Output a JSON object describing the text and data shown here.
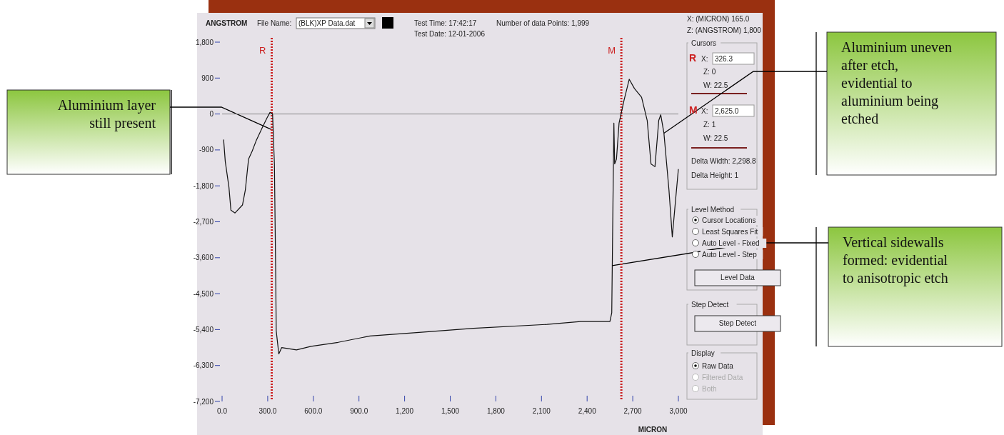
{
  "chart_data": {
    "type": "line",
    "xlabel": "MICRON",
    "ylabel": "ANGSTROM",
    "xlim": [
      0,
      3000
    ],
    "ylim": [
      -7200,
      1800
    ],
    "xticks": [
      {
        "value": 0,
        "label": "0.0"
      },
      {
        "value": 300,
        "label": "300.0"
      },
      {
        "value": 600,
        "label": "600.0"
      },
      {
        "value": 900,
        "label": "900.0"
      },
      {
        "value": 1200,
        "label": "1,200"
      },
      {
        "value": 1500,
        "label": "1,500"
      },
      {
        "value": 1800,
        "label": "1,800"
      },
      {
        "value": 2100,
        "label": "2,100"
      },
      {
        "value": 2400,
        "label": "2,400"
      },
      {
        "value": 2700,
        "label": "2,700"
      },
      {
        "value": 3000,
        "label": "3,000"
      }
    ],
    "yticks": [
      {
        "value": 1800,
        "label": "1,800"
      },
      {
        "value": 900,
        "label": "900"
      },
      0,
      {
        "value": -900,
        "label": "-900"
      },
      {
        "value": -1800,
        "label": "-1,800"
      },
      {
        "value": -2700,
        "label": "-2,700"
      },
      {
        "value": -3600,
        "label": "-3,600"
      },
      {
        "value": -4500,
        "label": "-4,500"
      },
      {
        "value": -5400,
        "label": "-5,400"
      },
      {
        "value": -6300,
        "label": "-6,300"
      },
      {
        "value": -7200,
        "label": "-7,200"
      }
    ],
    "series": [
      {
        "color": "#111111",
        "x": [
          10,
          21,
          45,
          58,
          85,
          134,
          153,
          174,
          198,
          223,
          263,
          295,
          315,
          332,
          344,
          352,
          356,
          373,
          392,
          489,
          585,
          763,
          973,
          1295,
          1653,
          2137,
          2357,
          2550,
          2562,
          2569,
          2576,
          2581,
          2593,
          2610,
          2643,
          2677,
          2711,
          2758,
          2795,
          2820,
          2846,
          2871,
          2884,
          2905,
          2938,
          2960,
          2980,
          3000
        ],
        "values": [
          -640,
          -1190,
          -1830,
          -2410,
          -2480,
          -2280,
          -1900,
          -1130,
          -930,
          -680,
          -350,
          -100,
          40,
          0,
          -1250,
          -3820,
          -5430,
          -6010,
          -5850,
          -5910,
          -5820,
          -5720,
          -5560,
          -5470,
          -5370,
          -5270,
          -5200,
          -5200,
          -4980,
          -2540,
          -230,
          -1250,
          -1130,
          -230,
          350,
          870,
          640,
          420,
          -160,
          -1250,
          -1320,
          -160,
          -20,
          -480,
          -1900,
          -3080,
          -2220,
          -1380
        ]
      }
    ],
    "ref_lines": [
      {
        "axis": "y",
        "value": 0,
        "color": "#888888"
      },
      {
        "axis": "x",
        "value": 326.3,
        "label": "R",
        "color": "#cc2222",
        "line_style": "dotted"
      },
      {
        "axis": "x",
        "value": 2625,
        "label": "M",
        "color": "#cc2222",
        "line_style": "dotted"
      }
    ],
    "grid": false,
    "annotations": [
      "File Name:",
      "(BLK)XP Data.dat",
      "Test Time: 17:42:17",
      "Test Date: 12-01-2006",
      "Number of data Points: 1,999",
      "X: (MICRON) 165.0",
      "Z: (ANGSTROM) 1,800",
      "Cursors",
      "R",
      "X:",
      "326.3",
      "Z: 0",
      "W: 22.5",
      "M",
      "X:",
      "2,625.0",
      "Z: 1",
      "W: 22.5",
      "Delta Width: 2,298.8",
      "Delta Height: 1",
      "Level Method",
      "Cursor Locations",
      "Least Squares Fit",
      "Auto Level - Fixed",
      "Auto Level - Step",
      "Level Data",
      "Step Detect",
      "Step Detect",
      "Display",
      "Raw Data",
      "Filtered Data",
      "Both",
      {
        "text": "Aluminium layer still present",
        "x": 330,
        "y": -400
      },
      {
        "text": "Aluminium uneven after etch, evidential to aluminium being etched",
        "x": 2905,
        "y": -480
      },
      {
        "text": "Vertical sidewalls formed: evidential to anisotropic etch",
        "x": 2565,
        "y": -3800
      }
    ]
  }
}
